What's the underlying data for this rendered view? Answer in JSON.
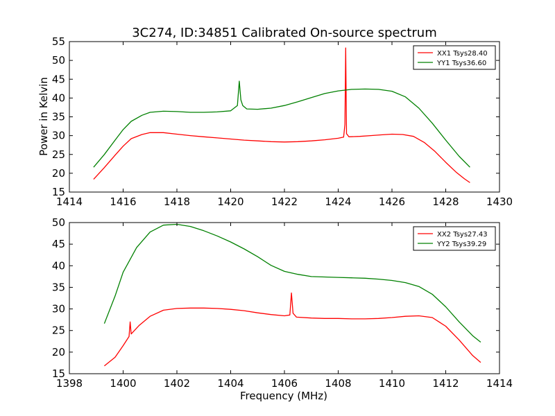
{
  "chart_data": [
    {
      "type": "line",
      "title": "3C274, ID:34851 Calibrated On-source spectrum",
      "xlabel": "",
      "ylabel": "Power in Kelvin",
      "xlim": [
        1414,
        1430
      ],
      "ylim": [
        15,
        55
      ],
      "xticks": [
        1414,
        1416,
        1418,
        1420,
        1422,
        1424,
        1426,
        1428,
        1430
      ],
      "yticks": [
        15,
        20,
        25,
        30,
        35,
        40,
        45,
        50,
        55
      ],
      "grid": false,
      "legend": "top-right",
      "series": [
        {
          "name": "XX1 Tsys28.40",
          "color": "#ff0000",
          "x": [
            1414.9,
            1415.3,
            1415.7,
            1416.0,
            1416.3,
            1416.7,
            1417.0,
            1417.5,
            1418.0,
            1418.5,
            1419.0,
            1419.5,
            1420.0,
            1420.5,
            1421.0,
            1421.5,
            1422.0,
            1422.5,
            1423.0,
            1423.5,
            1424.0,
            1424.2,
            1424.25,
            1424.28,
            1424.31,
            1424.4,
            1424.8,
            1425.2,
            1425.6,
            1426.0,
            1426.4,
            1426.8,
            1427.2,
            1427.6,
            1428.0,
            1428.4,
            1428.7,
            1428.9
          ],
          "y": [
            18.4,
            21.5,
            24.8,
            27.2,
            29.2,
            30.3,
            30.8,
            30.8,
            30.4,
            30.0,
            29.7,
            29.4,
            29.1,
            28.8,
            28.6,
            28.4,
            28.3,
            28.4,
            28.6,
            28.9,
            29.3,
            29.6,
            33.0,
            53.3,
            30.5,
            29.7,
            29.8,
            30.0,
            30.2,
            30.4,
            30.3,
            29.8,
            28.2,
            25.8,
            22.9,
            20.2,
            18.5,
            17.5
          ]
        },
        {
          "name": "YY1 Tsys36.60",
          "color": "#008000",
          "x": [
            1414.9,
            1415.3,
            1415.7,
            1416.0,
            1416.3,
            1416.7,
            1417.0,
            1417.5,
            1418.0,
            1418.5,
            1419.0,
            1419.5,
            1420.0,
            1420.25,
            1420.32,
            1420.38,
            1420.45,
            1420.6,
            1421.0,
            1421.5,
            1422.0,
            1422.5,
            1423.0,
            1423.5,
            1424.0,
            1424.5,
            1425.0,
            1425.5,
            1426.0,
            1426.5,
            1427.0,
            1427.5,
            1428.0,
            1428.5,
            1428.9
          ],
          "y": [
            21.6,
            25.0,
            28.8,
            31.6,
            33.8,
            35.4,
            36.2,
            36.5,
            36.4,
            36.2,
            36.2,
            36.3,
            36.6,
            38.0,
            44.5,
            39.5,
            38.0,
            37.1,
            37.0,
            37.3,
            38.0,
            39.0,
            40.1,
            41.2,
            41.9,
            42.3,
            42.4,
            42.3,
            41.8,
            40.3,
            37.3,
            33.3,
            28.8,
            24.5,
            21.6
          ]
        }
      ]
    },
    {
      "type": "line",
      "title": "",
      "xlabel": "Frequency (MHz)",
      "ylabel": "",
      "xlim": [
        1398,
        1414
      ],
      "ylim": [
        15,
        50
      ],
      "xticks": [
        1398,
        1400,
        1402,
        1404,
        1406,
        1408,
        1410,
        1412,
        1414
      ],
      "yticks": [
        15,
        20,
        25,
        30,
        35,
        40,
        45,
        50
      ],
      "grid": false,
      "legend": "top-right",
      "series": [
        {
          "name": "XX2 Tsys27.43",
          "color": "#ff0000",
          "x": [
            1399.3,
            1399.7,
            1400.0,
            1400.22,
            1400.26,
            1400.3,
            1400.6,
            1401.0,
            1401.5,
            1402.0,
            1402.5,
            1403.0,
            1403.5,
            1404.0,
            1404.5,
            1405.0,
            1405.5,
            1406.0,
            1406.2,
            1406.26,
            1406.32,
            1406.45,
            1407.0,
            1407.5,
            1408.0,
            1408.5,
            1409.0,
            1409.5,
            1410.0,
            1410.5,
            1411.0,
            1411.5,
            1412.0,
            1412.5,
            1413.0,
            1413.3
          ],
          "y": [
            16.8,
            18.8,
            21.5,
            23.6,
            27.0,
            24.2,
            26.2,
            28.3,
            29.7,
            30.1,
            30.2,
            30.2,
            30.1,
            29.9,
            29.6,
            29.1,
            28.7,
            28.4,
            28.6,
            33.7,
            29.0,
            28.1,
            27.9,
            27.8,
            27.8,
            27.7,
            27.7,
            27.8,
            28.0,
            28.3,
            28.4,
            28.0,
            26.0,
            22.8,
            19.2,
            17.6
          ]
        },
        {
          "name": "YY2 Tsys39.29",
          "color": "#008000",
          "x": [
            1399.3,
            1399.7,
            1400.0,
            1400.5,
            1401.0,
            1401.5,
            1402.0,
            1402.5,
            1403.0,
            1403.5,
            1404.0,
            1404.5,
            1405.0,
            1405.5,
            1406.0,
            1406.5,
            1407.0,
            1407.5,
            1408.0,
            1408.5,
            1409.0,
            1409.5,
            1410.0,
            1410.5,
            1411.0,
            1411.5,
            1412.0,
            1412.5,
            1413.0,
            1413.3
          ],
          "y": [
            26.6,
            33.0,
            38.5,
            44.2,
            47.8,
            49.4,
            49.6,
            49.1,
            48.1,
            46.9,
            45.5,
            43.9,
            42.1,
            40.1,
            38.7,
            38.0,
            37.5,
            37.4,
            37.3,
            37.2,
            37.1,
            36.9,
            36.6,
            36.1,
            35.2,
            33.4,
            30.5,
            27.0,
            23.8,
            22.3
          ]
        }
      ]
    }
  ]
}
